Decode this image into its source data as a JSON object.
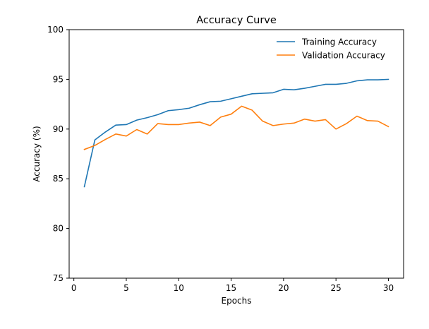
{
  "chart_data": {
    "type": "line",
    "title": "Accuracy Curve",
    "xlabel": "Epochs",
    "ylabel": "Accuracy (%)",
    "xlim": [
      -0.45,
      31.45
    ],
    "ylim": [
      75,
      100
    ],
    "xticks": [
      0,
      5,
      10,
      15,
      20,
      25,
      30
    ],
    "yticks": [
      75,
      80,
      85,
      90,
      95,
      100
    ],
    "grid": false,
    "legend_position": "upper right",
    "x": [
      1,
      2,
      3,
      4,
      5,
      6,
      7,
      8,
      9,
      10,
      11,
      12,
      13,
      14,
      15,
      16,
      17,
      18,
      19,
      20,
      21,
      22,
      23,
      24,
      25,
      26,
      27,
      28,
      29,
      30
    ],
    "series": [
      {
        "name": "Training Accuracy",
        "color": "#1f77b4",
        "values": [
          84.2,
          88.9,
          89.7,
          90.4,
          90.45,
          90.9,
          91.15,
          91.45,
          91.85,
          91.95,
          92.1,
          92.45,
          92.75,
          92.8,
          93.05,
          93.3,
          93.55,
          93.6,
          93.65,
          94.0,
          93.95,
          94.1,
          94.3,
          94.5,
          94.5,
          94.6,
          94.85,
          94.95,
          94.95,
          95.0
        ]
      },
      {
        "name": "Validation Accuracy",
        "color": "#ff7f0e",
        "values": [
          87.95,
          88.35,
          88.95,
          89.5,
          89.3,
          89.95,
          89.5,
          90.55,
          90.45,
          90.45,
          90.6,
          90.7,
          90.35,
          91.2,
          91.5,
          92.3,
          91.9,
          90.8,
          90.35,
          90.5,
          90.6,
          91.0,
          90.8,
          90.95,
          90.0,
          90.55,
          91.3,
          90.85,
          90.8,
          90.25
        ]
      }
    ]
  }
}
